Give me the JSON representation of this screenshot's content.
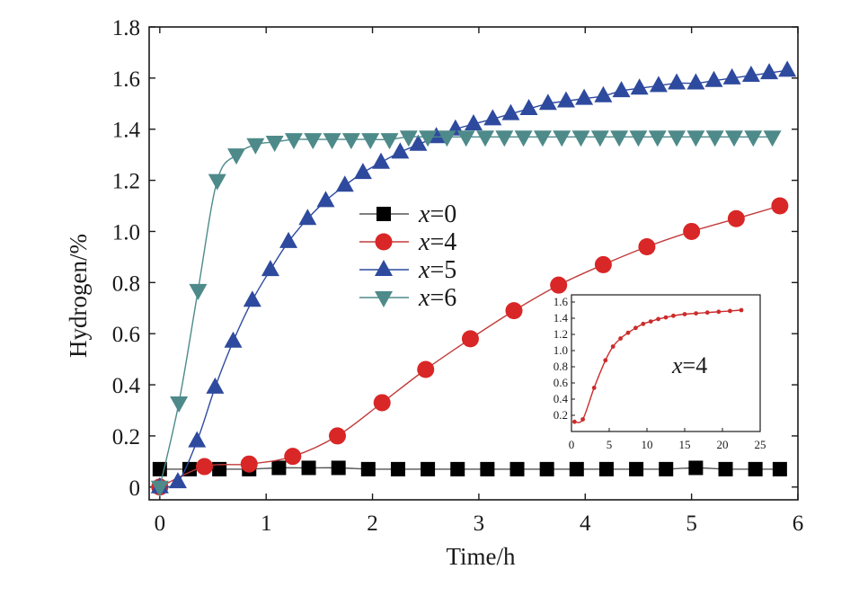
{
  "chart_data": [
    {
      "type": "line",
      "xlabel": "Time/h",
      "ylabel": "Hydrogen/%",
      "xlim": [
        -0.1,
        6
      ],
      "ylim": [
        -0.05,
        1.8
      ],
      "xticks": [
        0,
        1,
        2,
        3,
        4,
        5,
        6
      ],
      "xtick_labels": [
        "0",
        "1",
        "2",
        "3",
        "4",
        "5",
        "6"
      ],
      "yticks": [
        0,
        0.2,
        0.4,
        0.6,
        0.8,
        1.0,
        1.2,
        1.4,
        1.6,
        1.8
      ],
      "ytick_labels": [
        "0",
        "0.2",
        "0.4",
        "0.6",
        "0.8",
        "1.0",
        "1.2",
        "1.4",
        "1.6",
        "1.8"
      ],
      "grid": false,
      "legend_position": "center-left",
      "series": [
        {
          "name": "x=0",
          "var": "x",
          "eq": "=",
          "val": "0",
          "marker": "square",
          "color": "#000000",
          "line_color": "#555555",
          "x": [
            0.0,
            0.28,
            0.56,
            0.84,
            1.12,
            1.4,
            1.68,
            1.96,
            2.24,
            2.52,
            2.8,
            3.08,
            3.36,
            3.64,
            3.92,
            4.2,
            4.48,
            4.76,
            5.04,
            5.32,
            5.6,
            5.83
          ],
          "y": [
            0.07,
            0.07,
            0.07,
            0.07,
            0.075,
            0.075,
            0.075,
            0.07,
            0.07,
            0.07,
            0.07,
            0.07,
            0.07,
            0.07,
            0.07,
            0.07,
            0.07,
            0.07,
            0.075,
            0.07,
            0.07,
            0.07
          ]
        },
        {
          "name": "x=4",
          "var": "x",
          "eq": "=",
          "val": "4",
          "marker": "circle",
          "color": "#d92626",
          "line_color": "#c23b3b",
          "x": [
            0.0,
            0.42,
            0.84,
            1.25,
            1.67,
            2.09,
            2.5,
            2.92,
            3.33,
            3.75,
            4.17,
            4.58,
            5.0,
            5.42,
            5.83
          ],
          "y": [
            0.0,
            0.08,
            0.09,
            0.12,
            0.2,
            0.33,
            0.46,
            0.58,
            0.69,
            0.79,
            0.87,
            0.94,
            1.0,
            1.05,
            1.1
          ]
        },
        {
          "name": "x=5",
          "var": "x",
          "eq": "=",
          "val": "5",
          "marker": "triangle-up",
          "color": "#2e4a9e",
          "line_color": "#2e4a9e",
          "x": [
            0.0,
            0.17,
            0.35,
            0.52,
            0.69,
            0.87,
            1.04,
            1.21,
            1.39,
            1.56,
            1.74,
            1.91,
            2.08,
            2.26,
            2.43,
            2.6,
            2.78,
            2.95,
            3.13,
            3.3,
            3.47,
            3.65,
            3.82,
            3.99,
            4.17,
            4.34,
            4.51,
            4.69,
            4.86,
            5.04,
            5.21,
            5.38,
            5.56,
            5.73,
            5.9
          ],
          "y": [
            0.0,
            0.02,
            0.18,
            0.39,
            0.57,
            0.73,
            0.85,
            0.96,
            1.05,
            1.12,
            1.18,
            1.23,
            1.27,
            1.31,
            1.34,
            1.37,
            1.4,
            1.42,
            1.44,
            1.46,
            1.48,
            1.5,
            1.51,
            1.52,
            1.53,
            1.55,
            1.56,
            1.57,
            1.58,
            1.58,
            1.59,
            1.6,
            1.61,
            1.62,
            1.63
          ]
        },
        {
          "name": "x=6",
          "var": "x",
          "eq": "=",
          "val": "6",
          "marker": "triangle-down",
          "color": "#4e8a8a",
          "line_color": "#4e8a8a",
          "x": [
            0.0,
            0.18,
            0.36,
            0.54,
            0.72,
            0.9,
            1.08,
            1.26,
            1.44,
            1.62,
            1.8,
            1.98,
            2.16,
            2.34,
            2.52,
            2.7,
            2.88,
            3.06,
            3.24,
            3.42,
            3.6,
            3.78,
            3.96,
            4.14,
            4.32,
            4.5,
            4.68,
            4.86,
            5.04,
            5.22,
            5.4,
            5.58,
            5.76
          ],
          "y": [
            0.0,
            0.33,
            0.77,
            1.2,
            1.3,
            1.34,
            1.35,
            1.36,
            1.36,
            1.36,
            1.36,
            1.36,
            1.36,
            1.37,
            1.37,
            1.37,
            1.37,
            1.37,
            1.37,
            1.37,
            1.37,
            1.37,
            1.37,
            1.37,
            1.37,
            1.37,
            1.37,
            1.37,
            1.37,
            1.37,
            1.37,
            1.37,
            1.37
          ]
        }
      ]
    },
    {
      "type": "line",
      "inset": true,
      "annotation": "x=4",
      "annotation_var": "x",
      "annotation_rest": "=4",
      "xlim": [
        0,
        25
      ],
      "ylim": [
        0,
        1.6
      ],
      "xticks": [
        0,
        5,
        10,
        15,
        20,
        25
      ],
      "xtick_labels": [
        "0",
        "5",
        "10",
        "15",
        "20",
        "25"
      ],
      "yticks": [
        0.2,
        0.4,
        0.6,
        0.8,
        1.0,
        1.2,
        1.4,
        1.6
      ],
      "ytick_labels": [
        "0.2",
        "0.4",
        "0.6",
        "0.8",
        "1.0",
        "1.2",
        "1.4",
        "1.6"
      ],
      "series": [
        {
          "color": "#cc2b2b",
          "x": [
            0.4,
            1.5,
            3.0,
            4.5,
            5.5,
            6.5,
            7.5,
            8.5,
            9.5,
            10.5,
            11.5,
            12.5,
            13.5,
            15.0,
            16.5,
            18.0,
            19.5,
            21.0,
            22.5
          ],
          "y": [
            0.12,
            0.15,
            0.54,
            0.88,
            1.05,
            1.15,
            1.22,
            1.28,
            1.33,
            1.36,
            1.39,
            1.41,
            1.43,
            1.45,
            1.46,
            1.47,
            1.48,
            1.49,
            1.5
          ]
        }
      ]
    }
  ]
}
